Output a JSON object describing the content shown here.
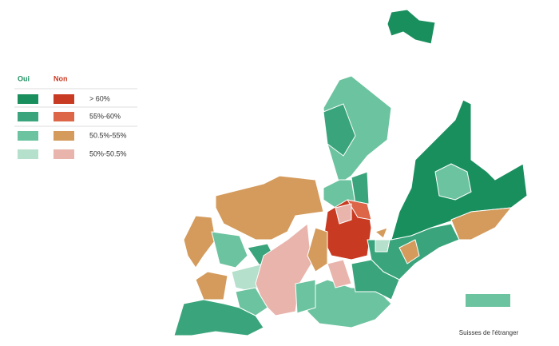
{
  "legend": {
    "headers": [
      "Oui",
      "Non"
    ],
    "rows": [
      "> 60%",
      "55%-60%",
      "50.5%-55%",
      "50%-50.5%"
    ]
  },
  "footer": {
    "label": "Suisses de l'étranger"
  }
}
